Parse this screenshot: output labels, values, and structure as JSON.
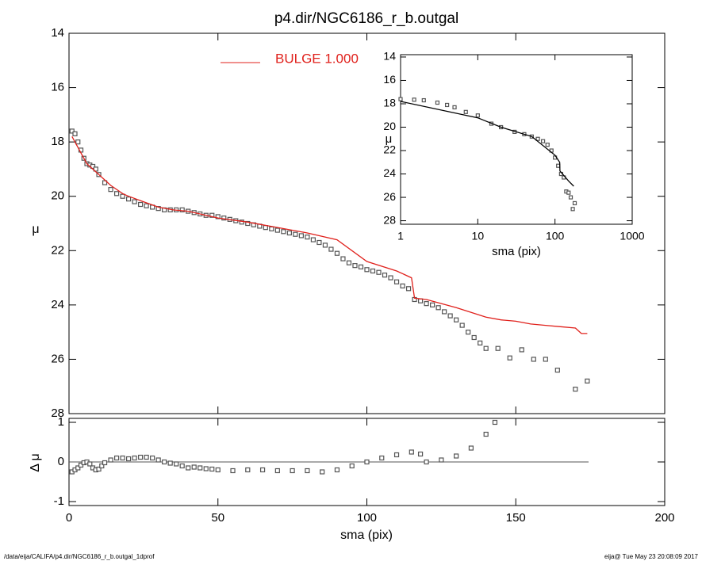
{
  "chart_data": [
    {
      "type": "scatter-line",
      "title": "p4.dir/NGC6186_r_b.outgal",
      "ylabel": "μ",
      "xlim": [
        0,
        200
      ],
      "xticks": [
        0,
        50,
        100,
        150,
        200
      ],
      "ylim": [
        28,
        14
      ],
      "yticks": [
        14,
        16,
        18,
        20,
        22,
        24,
        26,
        28
      ],
      "series": [
        {
          "marker": "square",
          "color": "#555555",
          "x": [
            1,
            2,
            3,
            4,
            5,
            6,
            7,
            8,
            9,
            10,
            12,
            14,
            16,
            18,
            20,
            22,
            24,
            26,
            28,
            30,
            32,
            34,
            36,
            38,
            40,
            42,
            44,
            46,
            48,
            50,
            52,
            54,
            56,
            58,
            60,
            62,
            64,
            66,
            68,
            70,
            72,
            74,
            76,
            78,
            80,
            82,
            84,
            86,
            88,
            90,
            92,
            94,
            96,
            98,
            100,
            102,
            104,
            106,
            108,
            110,
            112,
            114,
            116,
            118,
            120,
            122,
            124,
            126,
            128,
            130,
            132,
            134,
            136,
            138,
            140,
            144,
            148,
            152,
            156,
            160,
            164,
            170,
            174
          ],
          "values": [
            17.6,
            17.7,
            18.0,
            18.3,
            18.6,
            18.8,
            18.85,
            18.9,
            19.0,
            19.2,
            19.5,
            19.75,
            19.9,
            20.0,
            20.1,
            20.2,
            20.3,
            20.35,
            20.4,
            20.45,
            20.5,
            20.5,
            20.5,
            20.5,
            20.55,
            20.6,
            20.65,
            20.7,
            20.7,
            20.75,
            20.8,
            20.85,
            20.9,
            20.95,
            21.0,
            21.05,
            21.1,
            21.15,
            21.2,
            21.25,
            21.3,
            21.35,
            21.4,
            21.45,
            21.5,
            21.6,
            21.7,
            21.8,
            21.95,
            22.1,
            22.3,
            22.45,
            22.55,
            22.6,
            22.7,
            22.75,
            22.8,
            22.9,
            23.0,
            23.15,
            23.3,
            23.4,
            23.8,
            23.85,
            23.95,
            24.0,
            24.1,
            24.25,
            24.4,
            24.55,
            24.75,
            25.0,
            25.2,
            25.4,
            25.6,
            25.6,
            25.95,
            25.65,
            26.0,
            26.0,
            26.4,
            27.1,
            26.8
          ]
        },
        {
          "name": "BULGE  1.000",
          "marker": "line",
          "color": "#e0201b",
          "x": [
            1,
            4,
            6,
            8,
            10,
            12,
            14,
            16,
            18,
            20,
            25,
            30,
            35,
            40,
            50,
            60,
            70,
            80,
            90,
            100,
            110,
            115,
            116,
            120,
            130,
            140,
            145,
            150,
            155,
            160,
            165,
            170,
            172,
            174
          ],
          "values": [
            17.8,
            18.4,
            18.8,
            19.0,
            19.2,
            19.4,
            19.6,
            19.75,
            19.9,
            20.0,
            20.2,
            20.4,
            20.5,
            20.55,
            20.8,
            20.95,
            21.15,
            21.35,
            21.6,
            22.4,
            22.75,
            23.0,
            23.75,
            23.8,
            24.1,
            24.45,
            24.55,
            24.6,
            24.7,
            24.75,
            24.8,
            24.85,
            25.05,
            25.05
          ]
        }
      ]
    },
    {
      "type": "scatter-line",
      "xlabel": "sma (pix)",
      "ylabel": "Δ μ",
      "xlim": [
        0,
        200
      ],
      "xticks": [
        0,
        50,
        100,
        150,
        200
      ],
      "ylim": [
        -1.1,
        1.1
      ],
      "yticks": [
        -1,
        0,
        1
      ],
      "zero_line": true,
      "series": [
        {
          "marker": "square",
          "color": "#555555",
          "x": [
            1,
            2,
            3,
            4,
            5,
            6,
            7,
            8,
            9,
            10,
            11,
            12,
            14,
            16,
            18,
            20,
            22,
            24,
            26,
            28,
            30,
            32,
            34,
            36,
            38,
            40,
            42,
            44,
            46,
            48,
            50,
            55,
            60,
            65,
            70,
            75,
            80,
            85,
            90,
            95,
            100,
            105,
            110,
            115,
            118,
            120,
            125,
            130,
            135,
            140,
            143
          ],
          "values": [
            -0.25,
            -0.2,
            -0.15,
            -0.08,
            -0.02,
            0.0,
            -0.05,
            -0.15,
            -0.2,
            -0.18,
            -0.1,
            -0.02,
            0.05,
            0.1,
            0.1,
            0.08,
            0.1,
            0.12,
            0.12,
            0.1,
            0.05,
            0.0,
            -0.03,
            -0.05,
            -0.1,
            -0.15,
            -0.13,
            -0.15,
            -0.17,
            -0.18,
            -0.2,
            -0.22,
            -0.2,
            -0.2,
            -0.22,
            -0.22,
            -0.22,
            -0.25,
            -0.2,
            -0.1,
            0.0,
            0.1,
            0.18,
            0.25,
            0.2,
            0.0,
            0.05,
            0.15,
            0.35,
            0.7,
            1.0
          ]
        }
      ]
    },
    {
      "type": "scatter-line",
      "xlabel": "sma (pix)",
      "ylabel": "μ",
      "xlog": true,
      "xlim": [
        1,
        1000
      ],
      "xticks": [
        1,
        10,
        100,
        1000
      ],
      "ylim": [
        28.3,
        13.8
      ],
      "yticks": [
        14,
        16,
        18,
        20,
        22,
        24,
        26,
        28
      ],
      "series": [
        {
          "marker": "square",
          "color": "#555555",
          "x": [
            1,
            1.5,
            2,
            3,
            4,
            5,
            7,
            10,
            15,
            20,
            30,
            40,
            50,
            60,
            70,
            80,
            90,
            100,
            110,
            120,
            130,
            140,
            150,
            160,
            170,
            180
          ],
          "values": [
            17.6,
            17.65,
            17.7,
            17.9,
            18.1,
            18.3,
            18.7,
            19.0,
            19.7,
            20.0,
            20.4,
            20.6,
            20.8,
            21.0,
            21.2,
            21.5,
            22.0,
            22.6,
            23.3,
            24.0,
            24.3,
            25.5,
            25.6,
            26.0,
            27.0,
            26.5
          ]
        },
        {
          "marker": "line",
          "color": "#000000",
          "x": [
            1,
            10,
            20,
            50,
            100,
            115,
            116,
            150,
            175
          ],
          "values": [
            17.8,
            19.2,
            20.0,
            20.8,
            22.4,
            23.0,
            23.75,
            24.6,
            25.05
          ]
        }
      ]
    }
  ],
  "footer": {
    "path": "/data/eija/CALIFA/p4.dir/NGC6186_r_b.outgal_1dprof",
    "stamp": "eija@  Tue May 23 20:08:09 2017"
  }
}
